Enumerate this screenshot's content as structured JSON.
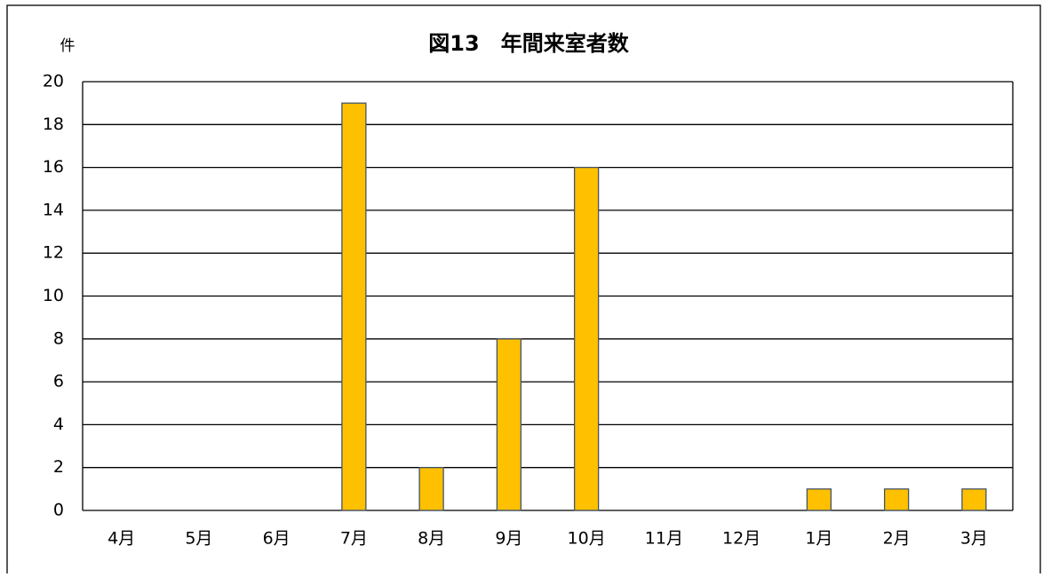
{
  "chart_data": {
    "type": "bar",
    "title": "図13　年間来室者数",
    "y_label": "件",
    "categories": [
      "4月",
      "5月",
      "6月",
      "7月",
      "8月",
      "9月",
      "10月",
      "11月",
      "12月",
      "1月",
      "2月",
      "3月"
    ],
    "values": [
      0,
      0,
      0,
      19,
      2,
      8,
      16,
      0,
      0,
      1,
      1,
      1
    ],
    "color": "#ffc000",
    "edge_color": "#44546a",
    "ylim": [
      0,
      20
    ],
    "yticks": [
      0,
      2,
      4,
      6,
      8,
      10,
      12,
      14,
      16,
      18,
      20
    ],
    "grid": true
  }
}
